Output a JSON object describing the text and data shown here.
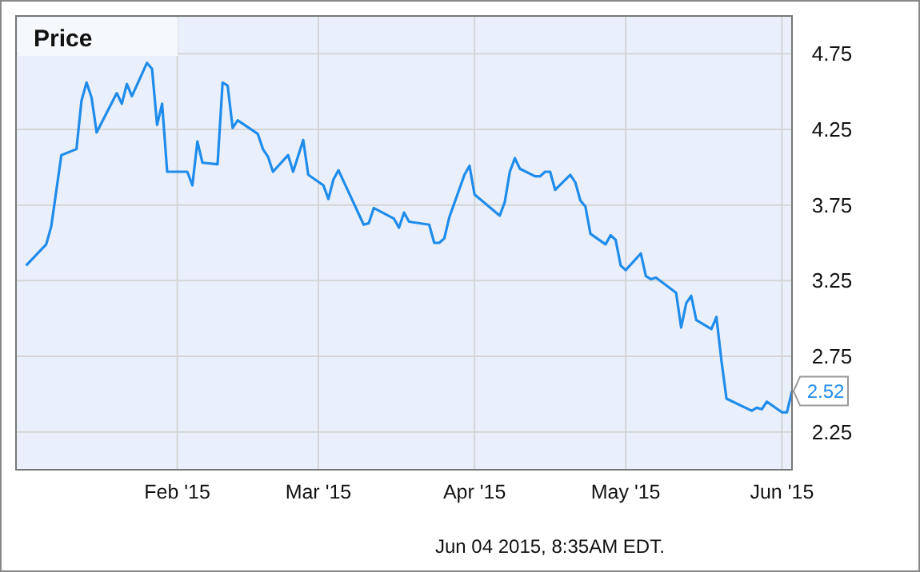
{
  "chart_data": {
    "type": "line",
    "title": "Price",
    "x": [
      "2015-01-02",
      "2015-01-06",
      "2015-01-07",
      "2015-01-09",
      "2015-01-12",
      "2015-01-13",
      "2015-01-14",
      "2015-01-15",
      "2015-01-16",
      "2015-01-20",
      "2015-01-21",
      "2015-01-22",
      "2015-01-23",
      "2015-01-26",
      "2015-01-27",
      "2015-01-28",
      "2015-01-29",
      "2015-01-30",
      "2015-02-03",
      "2015-02-04",
      "2015-02-05",
      "2015-02-06",
      "2015-02-09",
      "2015-02-10",
      "2015-02-11",
      "2015-02-12",
      "2015-02-13",
      "2015-02-17",
      "2015-02-18",
      "2015-02-19",
      "2015-02-20",
      "2015-02-23",
      "2015-02-24",
      "2015-02-26",
      "2015-02-27",
      "2015-03-02",
      "2015-03-03",
      "2015-03-04",
      "2015-03-05",
      "2015-03-10",
      "2015-03-11",
      "2015-03-12",
      "2015-03-16",
      "2015-03-17",
      "2015-03-18",
      "2015-03-19",
      "2015-03-23",
      "2015-03-24",
      "2015-03-25",
      "2015-03-26",
      "2015-03-27",
      "2015-03-30",
      "2015-03-31",
      "2015-04-01",
      "2015-04-06",
      "2015-04-07",
      "2015-04-08",
      "2015-04-09",
      "2015-04-10",
      "2015-04-13",
      "2015-04-14",
      "2015-04-15",
      "2015-04-16",
      "2015-04-17",
      "2015-04-20",
      "2015-04-21",
      "2015-04-22",
      "2015-04-23",
      "2015-04-24",
      "2015-04-27",
      "2015-04-28",
      "2015-04-29",
      "2015-04-30",
      "2015-05-01",
      "2015-05-04",
      "2015-05-05",
      "2015-05-06",
      "2015-05-07",
      "2015-05-11",
      "2015-05-12",
      "2015-05-13",
      "2015-05-14",
      "2015-05-15",
      "2015-05-18",
      "2015-05-19",
      "2015-05-20",
      "2015-05-21",
      "2015-05-26",
      "2015-05-27",
      "2015-05-28",
      "2015-05-29",
      "2015-06-01",
      "2015-06-02",
      "2015-06-03"
    ],
    "series": [
      {
        "color": "#1f8ceb",
        "values": [
          3.35,
          3.49,
          3.61,
          4.08,
          4.12,
          4.44,
          4.56,
          4.46,
          4.23,
          4.49,
          4.42,
          4.55,
          4.47,
          4.69,
          4.65,
          4.28,
          4.42,
          3.97,
          3.97,
          3.88,
          4.17,
          4.03,
          4.02,
          4.56,
          4.54,
          4.26,
          4.31,
          4.22,
          4.12,
          4.07,
          3.97,
          4.08,
          3.97,
          4.18,
          3.95,
          3.88,
          3.79,
          3.92,
          3.98,
          3.62,
          3.63,
          3.73,
          3.66,
          3.6,
          3.7,
          3.64,
          3.62,
          3.5,
          3.5,
          3.53,
          3.67,
          3.95,
          4.01,
          3.82,
          3.68,
          3.77,
          3.97,
          4.06,
          3.99,
          3.94,
          3.94,
          3.97,
          3.97,
          3.85,
          3.95,
          3.9,
          3.78,
          3.74,
          3.56,
          3.49,
          3.55,
          3.52,
          3.35,
          3.32,
          3.43,
          3.28,
          3.26,
          3.27,
          3.17,
          2.94,
          3.1,
          3.15,
          2.99,
          2.93,
          3.01,
          2.72,
          2.47,
          2.39,
          2.41,
          2.4,
          2.45,
          2.38,
          2.38,
          2.52
        ],
        "value_labels": [
          null,
          null,
          null,
          null,
          null,
          null,
          null,
          null,
          null,
          null,
          null,
          null,
          null,
          null,
          null,
          null,
          null,
          null,
          null,
          null,
          null,
          null,
          null,
          null,
          null,
          null,
          null,
          null,
          null,
          null,
          null,
          null,
          null,
          null,
          null,
          null,
          null,
          null,
          null,
          null,
          null,
          null,
          null,
          null,
          null,
          null,
          null,
          null,
          null,
          null,
          null,
          null,
          null,
          null,
          null,
          null,
          null,
          null,
          null,
          null,
          null,
          null,
          null,
          null,
          null,
          null,
          null,
          null,
          null,
          null,
          null,
          null,
          null,
          null,
          null,
          null,
          null,
          null,
          null,
          null,
          null,
          null,
          null,
          null,
          null,
          null,
          null,
          null,
          null,
          null,
          null,
          null,
          null,
          "2.52"
        ]
      }
    ],
    "xlim": [
      "2014-12-31",
      "2015-06-03"
    ],
    "xticks": [
      {
        "value": "2015-02-01",
        "label": "Feb '15"
      },
      {
        "value": "2015-03-01",
        "label": "Mar '15"
      },
      {
        "value": "2015-04-01",
        "label": "Apr '15"
      },
      {
        "value": "2015-05-01",
        "label": "May '15"
      },
      {
        "value": "2015-06-01",
        "label": "Jun '15"
      }
    ],
    "ylim": [
      2.0,
      5.0
    ],
    "yticks": [
      2.25,
      2.75,
      3.25,
      3.75,
      4.25,
      4.75
    ],
    "grid": true,
    "annotations": [
      "Jun 04 2015, 8:35AM EDT."
    ]
  }
}
